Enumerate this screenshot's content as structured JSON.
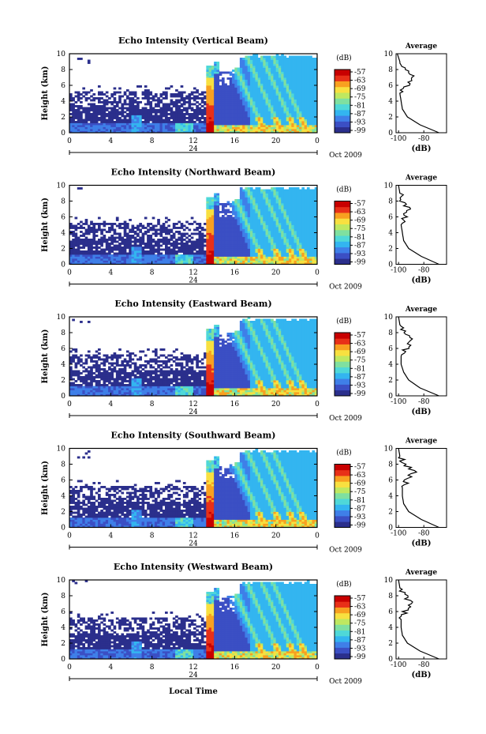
{
  "figure": {
    "date_label": "Oct 2009",
    "day_label": "24",
    "xlabel": "Local Time",
    "colorbar_unit": "(dB)",
    "avg_title": "Average",
    "avg_xlabel": "(dB)"
  },
  "chart_data": [
    {
      "type": "heatmap",
      "title": "Echo Intensity (Vertical Beam)",
      "xlabel": "",
      "ylabel": "Height (km)",
      "xlim": [
        0,
        24
      ],
      "ylim": [
        0,
        10
      ],
      "x_ticks": [
        "0",
        "4",
        "8",
        "12",
        "16",
        "20",
        "0"
      ],
      "y_ticks": [
        "0",
        "2",
        "4",
        "6",
        "8",
        "10"
      ],
      "colorbar": {
        "label": "(dB)",
        "ticks": [
          "-57",
          "-63",
          "-69",
          "-75",
          "-81",
          "-87",
          "-93",
          "-99"
        ]
      },
      "avg_profile": {
        "title": "Average",
        "xlabel": "(dB)",
        "x_ticks": [
          "-100",
          "-80"
        ],
        "xlim": [
          -102,
          -62
        ],
        "heights": [
          0,
          1,
          2,
          3,
          4,
          5,
          6,
          7,
          8,
          9,
          10
        ],
        "values": [
          -68,
          -83,
          -93,
          -97,
          -98,
          -99,
          -93,
          -88,
          -96,
          -99,
          -101
        ]
      },
      "seed": 1
    },
    {
      "type": "heatmap",
      "title": "Echo Intensity (Northward Beam)",
      "xlabel": "",
      "ylabel": "Height (km)",
      "xlim": [
        0,
        24
      ],
      "ylim": [
        0,
        10
      ],
      "x_ticks": [
        "0",
        "4",
        "8",
        "12",
        "16",
        "20",
        "0"
      ],
      "y_ticks": [
        "0",
        "2",
        "4",
        "6",
        "8",
        "10"
      ],
      "colorbar": {
        "label": "(dB)",
        "ticks": [
          "-57",
          "-63",
          "-69",
          "-75",
          "-81",
          "-87",
          "-93",
          "-99"
        ]
      },
      "avg_profile": {
        "title": "Average",
        "xlabel": "(dB)",
        "x_ticks": [
          "-100",
          "-80"
        ],
        "xlim": [
          -102,
          -62
        ],
        "heights": [
          0,
          1,
          2,
          3,
          4,
          5,
          6,
          7,
          8,
          9,
          10
        ],
        "values": [
          -68,
          -82,
          -92,
          -96,
          -97,
          -98,
          -95,
          -92,
          -97,
          -99,
          -100
        ]
      },
      "seed": 2
    },
    {
      "type": "heatmap",
      "title": "Echo Intensity (Eastward Beam)",
      "xlabel": "",
      "ylabel": "Height (km)",
      "xlim": [
        0,
        24
      ],
      "ylim": [
        0,
        10
      ],
      "x_ticks": [
        "0",
        "4",
        "8",
        "12",
        "16",
        "20",
        "0"
      ],
      "y_ticks": [
        "0",
        "2",
        "4",
        "6",
        "8",
        "10"
      ],
      "colorbar": {
        "label": "(dB)",
        "ticks": [
          "-57",
          "-63",
          "-69",
          "-75",
          "-81",
          "-87",
          "-93",
          "-99"
        ]
      },
      "avg_profile": {
        "title": "Average",
        "xlabel": "(dB)",
        "x_ticks": [
          "-100",
          "-80"
        ],
        "xlim": [
          -102,
          -62
        ],
        "heights": [
          0,
          1,
          2,
          3,
          4,
          5,
          6,
          7,
          8,
          9,
          10
        ],
        "values": [
          -68,
          -83,
          -92,
          -96,
          -98,
          -98,
          -94,
          -90,
          -95,
          -99,
          -100
        ]
      },
      "seed": 3
    },
    {
      "type": "heatmap",
      "title": "Echo Intensity (Southward Beam)",
      "xlabel": "",
      "ylabel": "Height (km)",
      "xlim": [
        0,
        24
      ],
      "ylim": [
        0,
        10
      ],
      "x_ticks": [
        "0",
        "4",
        "8",
        "12",
        "16",
        "20",
        "0"
      ],
      "y_ticks": [
        "0",
        "2",
        "4",
        "6",
        "8",
        "10"
      ],
      "colorbar": {
        "label": "(dB)",
        "ticks": [
          "-57",
          "-63",
          "-69",
          "-75",
          "-81",
          "-87",
          "-93",
          "-99"
        ]
      },
      "avg_profile": {
        "title": "Average",
        "xlabel": "(dB)",
        "x_ticks": [
          "-100",
          "-80"
        ],
        "xlim": [
          -102,
          -62
        ],
        "heights": [
          0,
          1,
          2,
          3,
          4,
          5,
          6,
          7,
          8,
          9,
          10
        ],
        "values": [
          -68,
          -82,
          -92,
          -96,
          -97,
          -97,
          -93,
          -88,
          -95,
          -99,
          -100
        ]
      },
      "seed": 4
    },
    {
      "type": "heatmap",
      "title": "Echo Intensity (Westward Beam)",
      "xlabel": "Local Time",
      "ylabel": "Height (km)",
      "xlim": [
        0,
        24
      ],
      "ylim": [
        0,
        10
      ],
      "x_ticks": [
        "0",
        "4",
        "8",
        "12",
        "16",
        "20",
        "0"
      ],
      "y_ticks": [
        "0",
        "2",
        "4",
        "6",
        "8",
        "10"
      ],
      "colorbar": {
        "label": "(dB)",
        "ticks": [
          "-57",
          "-63",
          "-69",
          "-75",
          "-81",
          "-87",
          "-93",
          "-99"
        ]
      },
      "avg_profile": {
        "title": "Average",
        "xlabel": "(dB)",
        "x_ticks": [
          "-100",
          "-80"
        ],
        "xlim": [
          -102,
          -62
        ],
        "heights": [
          0,
          1,
          2,
          3,
          4,
          5,
          6,
          7,
          8,
          9,
          10
        ],
        "values": [
          -68,
          -83,
          -93,
          -97,
          -98,
          -98,
          -95,
          -90,
          -95,
          -99,
          -100
        ]
      },
      "seed": 5
    }
  ],
  "colormap": [
    "#2b2f8c",
    "#3b4fc4",
    "#3f7fe8",
    "#33b5f0",
    "#4fd8d8",
    "#7fe0a0",
    "#bfe860",
    "#f8e040",
    "#f8a020",
    "#e83018",
    "#c80000"
  ]
}
